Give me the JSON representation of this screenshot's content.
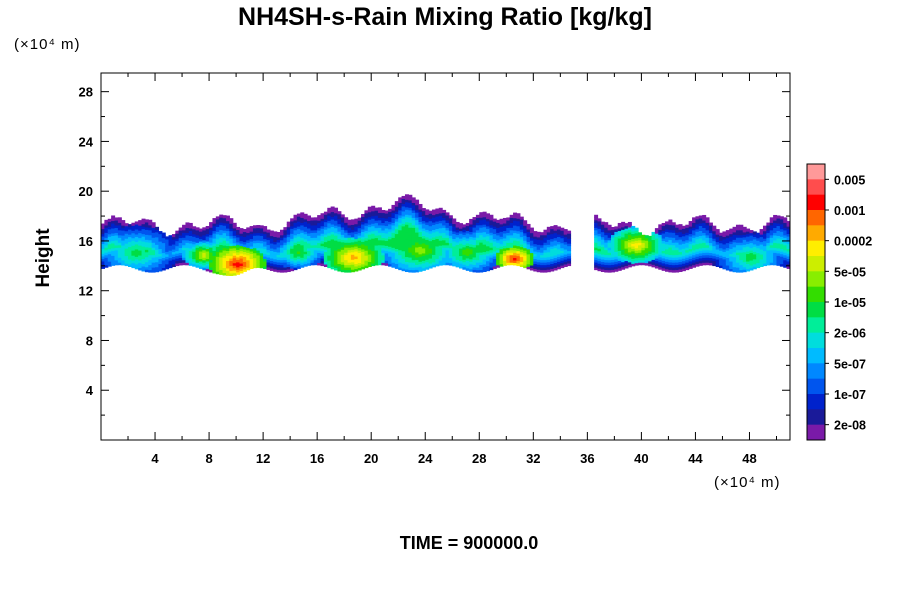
{
  "chart_data": {
    "type": "heatmap",
    "title": "NH4SH-s-Rain Mixing Ratio [kg/kg]",
    "ylabel": "Height",
    "xlabel": "",
    "x_unit_label": "(×10⁴ m)",
    "y_unit_label": "(×10⁴ m)",
    "xlim": [
      0,
      51
    ],
    "ylim": [
      0,
      29.5
    ],
    "x_ticks": [
      4,
      8,
      12,
      16,
      20,
      24,
      28,
      32,
      36,
      40,
      44,
      48
    ],
    "y_ticks": [
      4,
      8,
      12,
      16,
      20,
      24,
      28
    ],
    "colorbar": {
      "labels": [
        "0.005",
        "0.001",
        "0.0002",
        "5e-05",
        "1e-05",
        "2e-06",
        "5e-07",
        "1e-07",
        "2e-08"
      ],
      "colors": [
        "#ff9999",
        "#ff4d4d",
        "#ff0000",
        "#ff6600",
        "#ffaa00",
        "#ffee00",
        "#ccee00",
        "#88ee00",
        "#33dd00",
        "#00dd44",
        "#00ee99",
        "#00dddd",
        "#00bbff",
        "#0088ff",
        "#0055ee",
        "#0022cc",
        "#1a1a99",
        "#7a1aa8"
      ]
    },
    "cloud_layer": {
      "x_extent": [
        0,
        51
      ],
      "base_height": [
        13,
        14
      ],
      "top_height": [
        16,
        19.5
      ],
      "max_value_regions": [
        {
          "x": 10,
          "y": 14,
          "level": "0.001"
        },
        {
          "x": 18.5,
          "y": 14.5,
          "level": "0.0002"
        },
        {
          "x": 30.5,
          "y": 14.5,
          "level": "0.001"
        },
        {
          "x": 39.5,
          "y": 15.5,
          "level": "0.0002"
        }
      ]
    }
  },
  "footer": {
    "time_label": "TIME = 900000.0"
  }
}
